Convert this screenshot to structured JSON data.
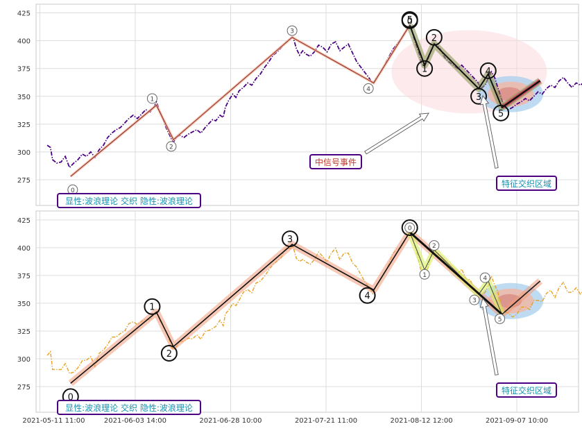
{
  "chart_data": [
    {
      "type": "line",
      "panel": "top",
      "ylim": [
        255,
        428
      ],
      "yticks": [
        275,
        300,
        325,
        350,
        375,
        400,
        425
      ],
      "price_color": "#4b0082",
      "price_series": [
        [
          -1.3,
          306
        ],
        [
          -1.0,
          304
        ],
        [
          -0.8,
          293
        ],
        [
          -0.4,
          290
        ],
        [
          0.0,
          291
        ],
        [
          0.4,
          296
        ],
        [
          0.8,
          286
        ],
        [
          1.2,
          290
        ],
        [
          1.6,
          293
        ],
        [
          2.0,
          298
        ],
        [
          2.4,
          296
        ],
        [
          2.8,
          300
        ],
        [
          3.2,
          295
        ],
        [
          3.6,
          302
        ],
        [
          4.0,
          306
        ],
        [
          4.4,
          313
        ],
        [
          4.8,
          317
        ],
        [
          5.2,
          320
        ],
        [
          5.6,
          322
        ],
        [
          6.0,
          326
        ],
        [
          6.4,
          330
        ],
        [
          6.8,
          333
        ],
        [
          7.2,
          330
        ],
        [
          7.6,
          334
        ],
        [
          8.0,
          338
        ],
        [
          8.4,
          336
        ],
        [
          8.8,
          341
        ],
        [
          9.0,
          345
        ],
        [
          9.3,
          337
        ],
        [
          9.6,
          330
        ],
        [
          9.9,
          322
        ],
        [
          10.2,
          316
        ],
        [
          10.4,
          312
        ],
        [
          10.6,
          309
        ],
        [
          10.9,
          313
        ],
        [
          11.2,
          315
        ],
        [
          11.6,
          313
        ],
        [
          12.0,
          316
        ],
        [
          12.4,
          318
        ],
        [
          12.8,
          320
        ],
        [
          13.2,
          317
        ],
        [
          13.6,
          322
        ],
        [
          14.0,
          326
        ],
        [
          14.3,
          329
        ],
        [
          14.6,
          328
        ],
        [
          15.0,
          333
        ],
        [
          15.3,
          331
        ],
        [
          15.5,
          340
        ],
        [
          15.8,
          346
        ],
        [
          16.2,
          352
        ],
        [
          16.5,
          349
        ],
        [
          16.8,
          355
        ],
        [
          17.2,
          358
        ],
        [
          17.6,
          362
        ],
        [
          18.0,
          360
        ],
        [
          18.4,
          366
        ],
        [
          18.8,
          370
        ],
        [
          19.2,
          376
        ],
        [
          19.6,
          381
        ],
        [
          20.0,
          387
        ],
        [
          20.4,
          390
        ],
        [
          20.8,
          394
        ],
        [
          21.2,
          398
        ],
        [
          21.6,
          402
        ],
        [
          21.9,
          403
        ],
        [
          22.2,
          393
        ],
        [
          22.5,
          387
        ],
        [
          22.8,
          391
        ],
        [
          23.1,
          388
        ],
        [
          23.5,
          386
        ],
        [
          23.9,
          390
        ],
        [
          24.3,
          396
        ],
        [
          24.7,
          394
        ],
        [
          25.1,
          390
        ],
        [
          25.5,
          397
        ],
        [
          25.9,
          399
        ],
        [
          26.3,
          391
        ],
        [
          26.7,
          394
        ],
        [
          27.1,
          397
        ],
        [
          27.5,
          389
        ],
        [
          27.9,
          381
        ],
        [
          28.3,
          376
        ],
        [
          28.7,
          371
        ],
        [
          29.1,
          366
        ],
        [
          29.4,
          361
        ],
        [
          29.7,
          366
        ],
        [
          30.1,
          371
        ],
        [
          30.5,
          378
        ],
        [
          30.9,
          385
        ],
        [
          31.3,
          392
        ],
        [
          31.7,
          397
        ],
        [
          32.1,
          402
        ],
        [
          32.5,
          408
        ],
        [
          32.8,
          412
        ],
        [
          33.0,
          413
        ],
        [
          33.2,
          405
        ],
        [
          33.5,
          396
        ],
        [
          33.8,
          388
        ],
        [
          34.0,
          380
        ],
        [
          34.3,
          377
        ],
        [
          34.6,
          383
        ],
        [
          34.9,
          391
        ],
        [
          35.2,
          397
        ],
        [
          35.5,
          396
        ],
        [
          35.8,
          392
        ],
        [
          36.2,
          385
        ],
        [
          36.6,
          381
        ],
        [
          37.0,
          378
        ],
        [
          37.4,
          375
        ],
        [
          37.8,
          378
        ],
        [
          38.2,
          374
        ],
        [
          38.6,
          370
        ],
        [
          39.0,
          366
        ],
        [
          39.3,
          363
        ],
        [
          39.6,
          357
        ],
        [
          40.0,
          360
        ],
        [
          40.3,
          366
        ],
        [
          40.6,
          372
        ],
        [
          40.9,
          367
        ],
        [
          41.2,
          358
        ],
        [
          41.5,
          349
        ],
        [
          41.8,
          341
        ],
        [
          42.2,
          338
        ],
        [
          42.6,
          340
        ],
        [
          43.0,
          343
        ],
        [
          43.4,
          345
        ],
        [
          43.8,
          348
        ],
        [
          44.2,
          346
        ],
        [
          44.6,
          350
        ],
        [
          45.0,
          354
        ],
        [
          45.4,
          352
        ],
        [
          45.8,
          357
        ],
        [
          46.2,
          360
        ],
        [
          46.6,
          358
        ],
        [
          47.0,
          364
        ],
        [
          47.4,
          367
        ],
        [
          47.8,
          362
        ],
        [
          48.2,
          358
        ],
        [
          48.6,
          362
        ],
        [
          49.0,
          360
        ],
        [
          49.4,
          363
        ],
        [
          49.6,
          352
        ],
        [
          49.8,
          346
        ],
        [
          50.1,
          351
        ],
        [
          50.5,
          354
        ],
        [
          50.8,
          353
        ]
      ],
      "waves": [
        {
          "i": 0,
          "x": 0.9,
          "y": 278,
          "label": "0"
        },
        {
          "i": 1,
          "x": 9.0,
          "y": 342,
          "label": "1"
        },
        {
          "i": 2,
          "x": 10.6,
          "y": 311,
          "label": "2"
        },
        {
          "i": 3,
          "x": 21.8,
          "y": 403,
          "label": "3"
        },
        {
          "i": 4,
          "x": 29.5,
          "y": 362,
          "label": "4"
        },
        {
          "i": 5,
          "x": 32.9,
          "y": 414,
          "label": "5"
        }
      ],
      "wave_markers": [
        {
          "x": 1.1,
          "y": 266,
          "label": "0",
          "r": 7
        },
        {
          "x": 8.6,
          "y": 348,
          "label": "1",
          "r": 7
        },
        {
          "x": 10.4,
          "y": 305,
          "label": "2",
          "r": 7
        },
        {
          "x": 21.8,
          "y": 409,
          "label": "3",
          "r": 7
        },
        {
          "x": 29.0,
          "y": 357,
          "label": "4",
          "r": 7
        },
        {
          "x": 32.9,
          "y": 419,
          "label": "5",
          "r": 11
        }
      ],
      "sub_waves": [
        {
          "x": 32.9,
          "y": 414
        },
        {
          "x": 34.3,
          "y": 378
        },
        {
          "x": 35.2,
          "y": 397
        },
        {
          "x": 39.4,
          "y": 357
        },
        {
          "x": 40.3,
          "y": 370
        },
        {
          "x": 41.6,
          "y": 340
        },
        {
          "x": 45.2,
          "y": 364
        }
      ],
      "sub_markers": [
        {
          "x": 32.9,
          "y": 418,
          "label": "0",
          "r": 11
        },
        {
          "x": 34.3,
          "y": 375,
          "label": "1",
          "r": 11
        },
        {
          "x": 35.2,
          "y": 403,
          "label": "2",
          "r": 11
        },
        {
          "x": 39.4,
          "y": 350,
          "label": "3",
          "r": 11
        },
        {
          "x": 40.3,
          "y": 373,
          "label": "4",
          "r": 11
        },
        {
          "x": 41.5,
          "y": 335,
          "label": "5",
          "r": 11
        }
      ],
      "explicit_label": "显性:波浪理论 交织 隐性:波浪理论",
      "signal_label": "中信号事件",
      "cross_label": "特征交织区域"
    },
    {
      "type": "line",
      "panel": "bottom",
      "ylim": [
        252,
        433
      ],
      "yticks": [
        275,
        300,
        325,
        350,
        375,
        400,
        425
      ],
      "price_color": "#e8a020",
      "waves": [
        {
          "x": 0.9,
          "y": 278
        },
        {
          "x": 9.0,
          "y": 342
        },
        {
          "x": 10.6,
          "y": 311
        },
        {
          "x": 21.8,
          "y": 403
        },
        {
          "x": 29.5,
          "y": 362
        },
        {
          "x": 32.9,
          "y": 414
        },
        {
          "x": 41.6,
          "y": 340
        },
        {
          "x": 45.2,
          "y": 370
        }
      ],
      "wave_markers": [
        {
          "x": 0.9,
          "y": 266,
          "label": "0",
          "r": 11
        },
        {
          "x": 8.6,
          "y": 347,
          "label": "1",
          "r": 11
        },
        {
          "x": 10.2,
          "y": 305,
          "label": "2",
          "r": 11
        },
        {
          "x": 21.6,
          "y": 408,
          "label": "3",
          "r": 11
        },
        {
          "x": 28.9,
          "y": 357,
          "label": "4",
          "r": 11
        },
        {
          "x": 32.9,
          "y": 418,
          "label": "5",
          "r": 11
        }
      ],
      "sub_waves": [
        {
          "x": 32.9,
          "y": 414
        },
        {
          "x": 34.3,
          "y": 380
        },
        {
          "x": 35.2,
          "y": 398
        },
        {
          "x": 39.4,
          "y": 358
        },
        {
          "x": 40.3,
          "y": 370
        },
        {
          "x": 41.6,
          "y": 340
        }
      ],
      "sub_markers": [
        {
          "x": 32.9,
          "y": 418,
          "label": "0",
          "r": 7
        },
        {
          "x": 34.3,
          "y": 376,
          "label": "1",
          "r": 7
        },
        {
          "x": 35.2,
          "y": 402,
          "label": "2",
          "r": 7
        },
        {
          "x": 39.0,
          "y": 353,
          "label": "3",
          "r": 7
        },
        {
          "x": 40.0,
          "y": 373,
          "label": "4",
          "r": 7
        },
        {
          "x": 41.4,
          "y": 336,
          "label": "5",
          "r": 7
        }
      ],
      "explicit_label": "显性:波浪理论 交织 隐性:波浪理论",
      "cross_label": "特征交织区域"
    }
  ],
  "x_axis": {
    "ticks": [
      {
        "x": -2.0,
        "label": "2021-05-11 11:00"
      },
      {
        "x": 7.0,
        "label": "2021-06-03 14:00"
      },
      {
        "x": 16.0,
        "label": "2021-06-28 10:00"
      },
      {
        "x": 25.0,
        "label": "2021-07-21 11:00"
      },
      {
        "x": 34.0,
        "label": "2021-08-12 12:00"
      },
      {
        "x": 43.0,
        "label": "2021-09-07 10:00"
      }
    ]
  }
}
